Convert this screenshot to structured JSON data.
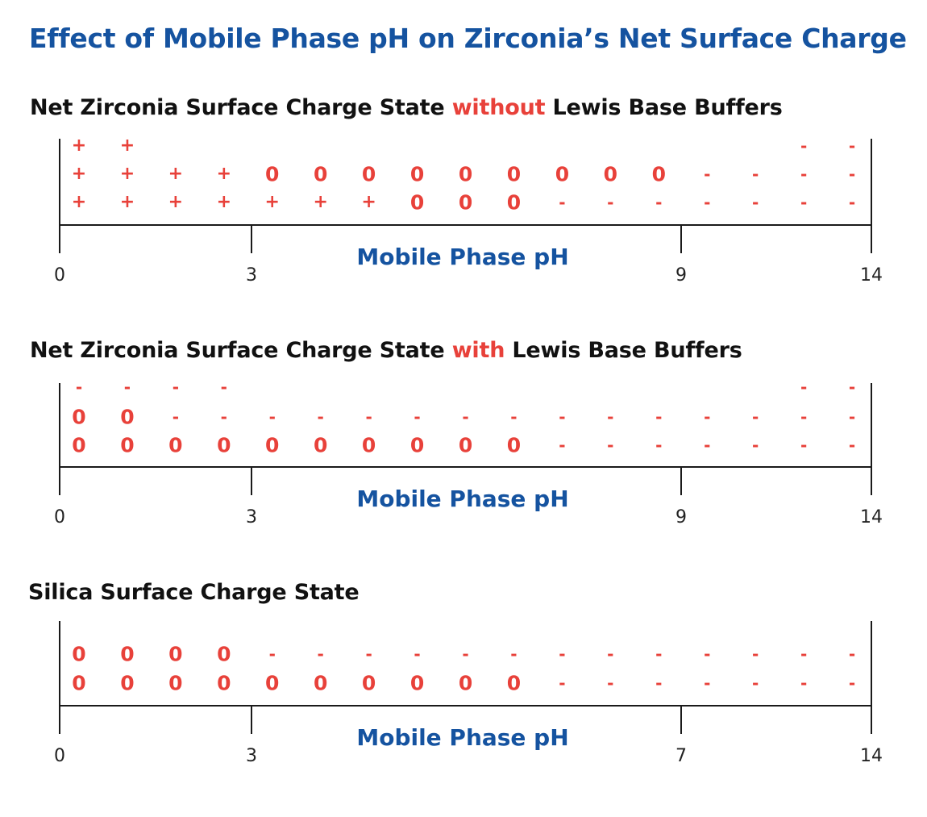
{
  "title": "Effect of Mobile Phase pH on Zirconia’s Net Surface Charge",
  "colors": {
    "title": "#1553a0",
    "highlight": "#e8413a",
    "symbols": "#e8413a",
    "axis_label": "#1553a0"
  },
  "panels": [
    {
      "title_before": "Net Zirconia Surface Charge State ",
      "title_highlight": "without",
      "title_after": " Lewis Base Buffers",
      "axis_label": "Mobile Phase pH",
      "ticks": [
        "0",
        "3",
        "9",
        "14"
      ],
      "rows": [
        [
          "+",
          "+",
          "",
          "",
          "",
          "",
          "",
          "",
          "",
          "",
          "",
          "",
          "",
          "",
          "",
          "-",
          "-"
        ],
        [
          "+",
          "+",
          "+",
          "+",
          "0",
          "0",
          "0",
          "0",
          "0",
          "0",
          "0",
          "0",
          "0",
          "-",
          "-",
          "-",
          "-"
        ],
        [
          "+",
          "+",
          "+",
          "+",
          "+",
          "+",
          "+",
          "0",
          "0",
          "0",
          "-",
          "-",
          "-",
          "-",
          "-",
          "-",
          "-"
        ]
      ]
    },
    {
      "title_before": "Net Zirconia Surface Charge State ",
      "title_highlight": "with",
      "title_after": " Lewis Base Buffers",
      "axis_label": "Mobile Phase pH",
      "ticks": [
        "0",
        "3",
        "9",
        "14"
      ],
      "rows": [
        [
          "-",
          "-",
          "-",
          "-",
          "",
          "",
          "",
          "",
          "",
          "",
          "",
          "",
          "",
          "",
          "",
          "-",
          "-"
        ],
        [
          "0",
          "0",
          "-",
          "-",
          "-",
          "-",
          "-",
          "-",
          "-",
          "-",
          "-",
          "-",
          "-",
          "-",
          "-",
          "-",
          "-"
        ],
        [
          "0",
          "0",
          "0",
          "0",
          "0",
          "0",
          "0",
          "0",
          "0",
          "0",
          "-",
          "-",
          "-",
          "-",
          "-",
          "-",
          "-"
        ]
      ]
    },
    {
      "title_before": "Silica Surface Charge State",
      "title_highlight": "",
      "title_after": "",
      "axis_label": "Mobile Phase pH",
      "ticks": [
        "0",
        "3",
        "7",
        "14"
      ],
      "rows": [
        [
          "0",
          "0",
          "0",
          "0",
          "-",
          "-",
          "-",
          "-",
          "-",
          "-",
          "-",
          "-",
          "-",
          "-",
          "-",
          "-",
          "-"
        ],
        [
          "0",
          "0",
          "0",
          "0",
          "0",
          "0",
          "0",
          "0",
          "0",
          "0",
          "-",
          "-",
          "-",
          "-",
          "-",
          "-",
          "-"
        ]
      ]
    }
  ]
}
